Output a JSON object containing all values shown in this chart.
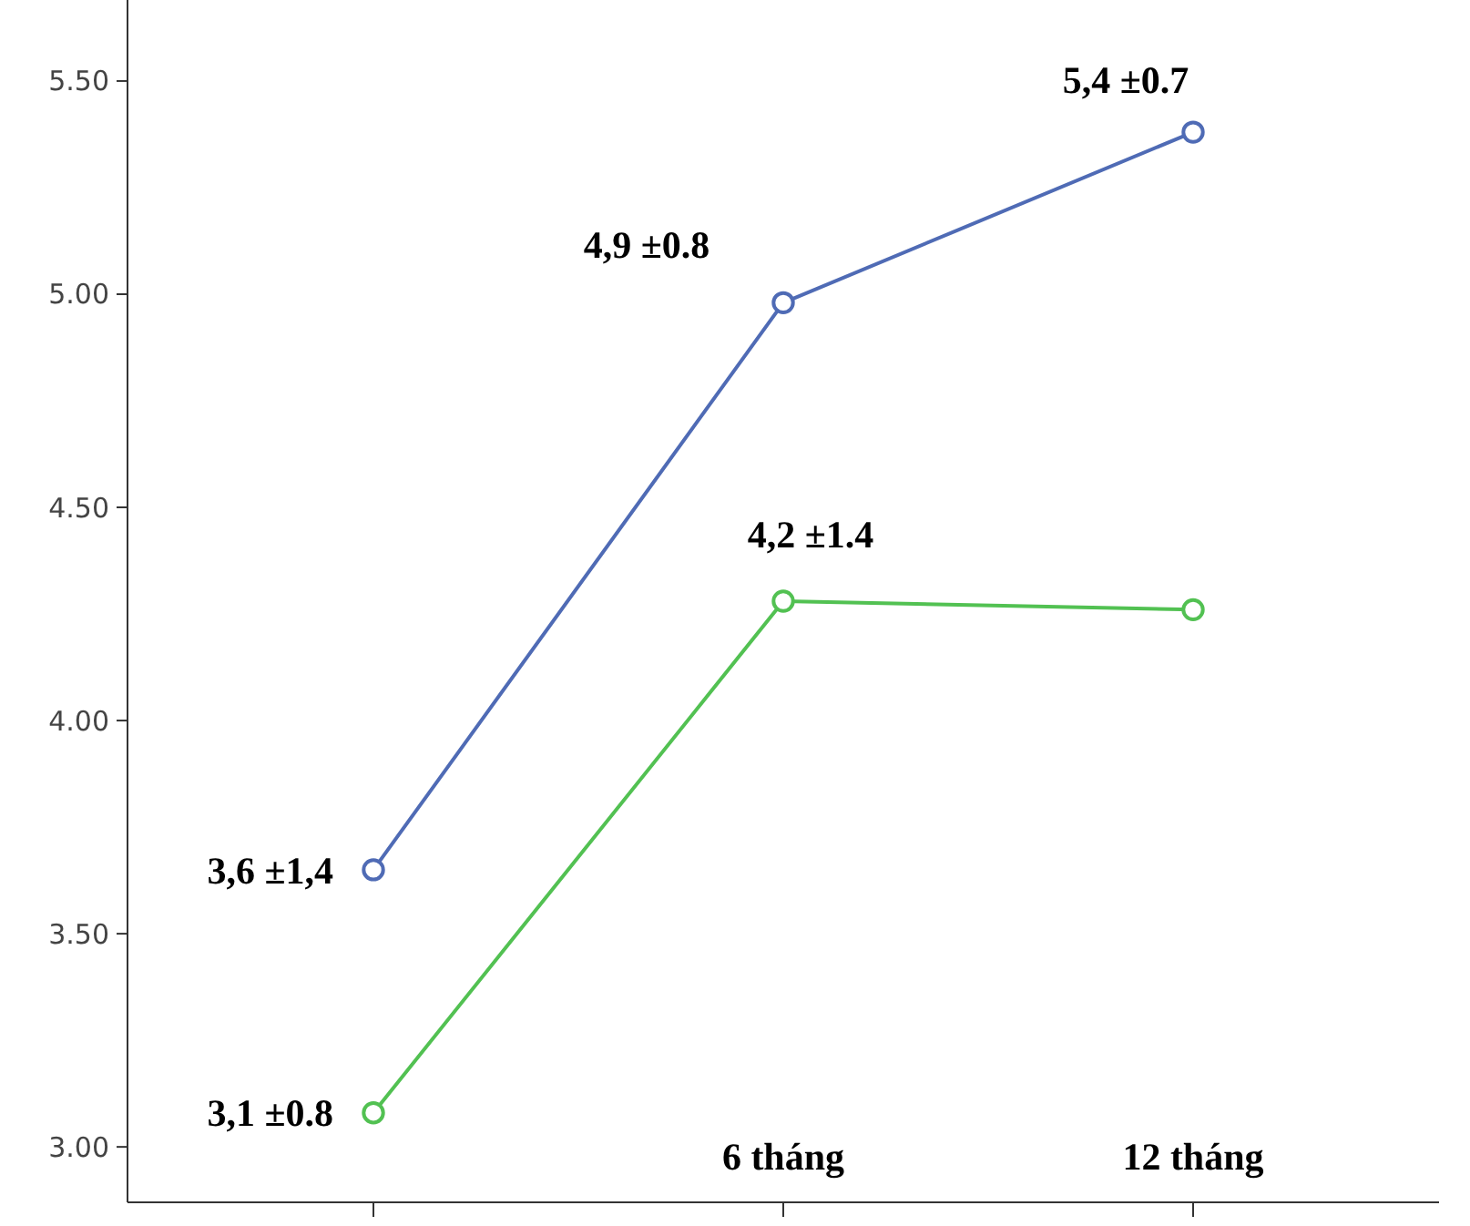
{
  "chart_data": {
    "type": "line",
    "categories": [
      null,
      "6 tháng",
      "12 tháng"
    ],
    "series": [
      {
        "color": "#4f6bb5",
        "values": [
          3.65,
          4.98,
          5.38
        ]
      },
      {
        "color": "#52c152",
        "values": [
          3.08,
          4.28,
          4.26
        ]
      }
    ],
    "ylim": [
      2.87,
      5.69
    ],
    "yticks": [
      {
        "value": 3,
        "label": "3.00"
      },
      {
        "value": 3.5,
        "label": "3.50"
      },
      {
        "value": 4,
        "label": "4.00"
      },
      {
        "value": 4.5,
        "label": "4.50"
      },
      {
        "value": 5,
        "label": "5.00"
      },
      {
        "value": 5.5,
        "label": "5.50"
      }
    ],
    "marker": "circle",
    "grid": false,
    "annotations": [
      "3,6 ±1,4",
      "3,1 ±0.8",
      "4,9 ±0.8",
      "4,2 ±1.4",
      "5,4 ±0.7"
    ]
  }
}
